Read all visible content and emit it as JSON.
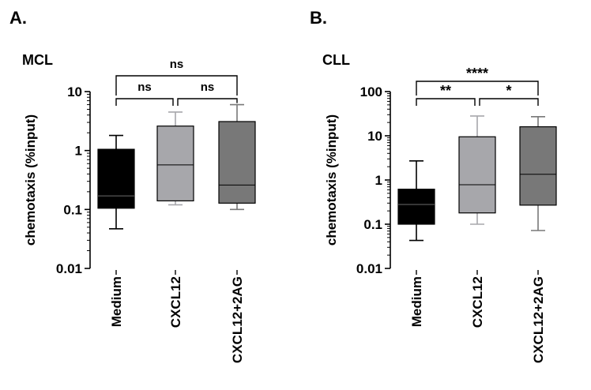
{
  "chart_data": [
    {
      "type": "box",
      "panel_label": "A.",
      "title": "MCL",
      "ylabel": "chemotaxis (%input)",
      "yscale": "log",
      "ylim": [
        0.01,
        10
      ],
      "yticks": [
        0.01,
        0.1,
        1,
        10
      ],
      "ytick_labels": [
        "0.01",
        "0.1",
        "1",
        "10"
      ],
      "categories": [
        "Medium",
        "CXCL12",
        "CXCL12+2AG"
      ],
      "boxes": [
        {
          "category": "Medium",
          "whisker_low": 0.047,
          "q1": 0.105,
          "median": 0.17,
          "q3": 1.05,
          "whisker_high": 1.8,
          "color": "#000000"
        },
        {
          "category": "CXCL12",
          "whisker_low": 0.12,
          "q1": 0.14,
          "median": 0.57,
          "q3": 2.6,
          "whisker_high": 4.5,
          "color": "#a7a7ab"
        },
        {
          "category": "CXCL12+2AG",
          "whisker_low": 0.1,
          "q1": 0.128,
          "median": 0.26,
          "q3": 3.1,
          "whisker_high": 6.0,
          "color": "#787878"
        }
      ],
      "significance": [
        {
          "from": 0,
          "to": 2,
          "label": "ns",
          "level": 1
        },
        {
          "from": 0,
          "to": 1,
          "label": "ns",
          "level": 0
        },
        {
          "from": 1,
          "to": 2,
          "label": "ns",
          "level": 0
        }
      ]
    },
    {
      "type": "box",
      "panel_label": "B.",
      "title": "CLL",
      "ylabel": "chemotaxis (%input)",
      "yscale": "log",
      "ylim": [
        0.01,
        100
      ],
      "yticks": [
        0.01,
        0.1,
        1,
        10,
        100
      ],
      "ytick_labels": [
        "0.01",
        "0.1",
        "1",
        "10",
        "100"
      ],
      "categories": [
        "Medium",
        "CXCL12",
        "CXCL12+2AG"
      ],
      "boxes": [
        {
          "category": "Medium",
          "whisker_low": 0.043,
          "q1": 0.1,
          "median": 0.28,
          "q3": 0.62,
          "whisker_high": 2.7,
          "color": "#000000"
        },
        {
          "category": "CXCL12",
          "whisker_low": 0.1,
          "q1": 0.18,
          "median": 0.78,
          "q3": 9.5,
          "whisker_high": 28,
          "color": "#a7a7ab"
        },
        {
          "category": "CXCL12+2AG",
          "whisker_low": 0.072,
          "q1": 0.27,
          "median": 1.35,
          "q3": 16,
          "whisker_high": 27,
          "color": "#787878"
        }
      ],
      "significance": [
        {
          "from": 0,
          "to": 2,
          "label": "****",
          "level": 1
        },
        {
          "from": 0,
          "to": 1,
          "label": "**",
          "level": 0
        },
        {
          "from": 1,
          "to": 2,
          "label": "*",
          "level": 0
        }
      ]
    }
  ]
}
